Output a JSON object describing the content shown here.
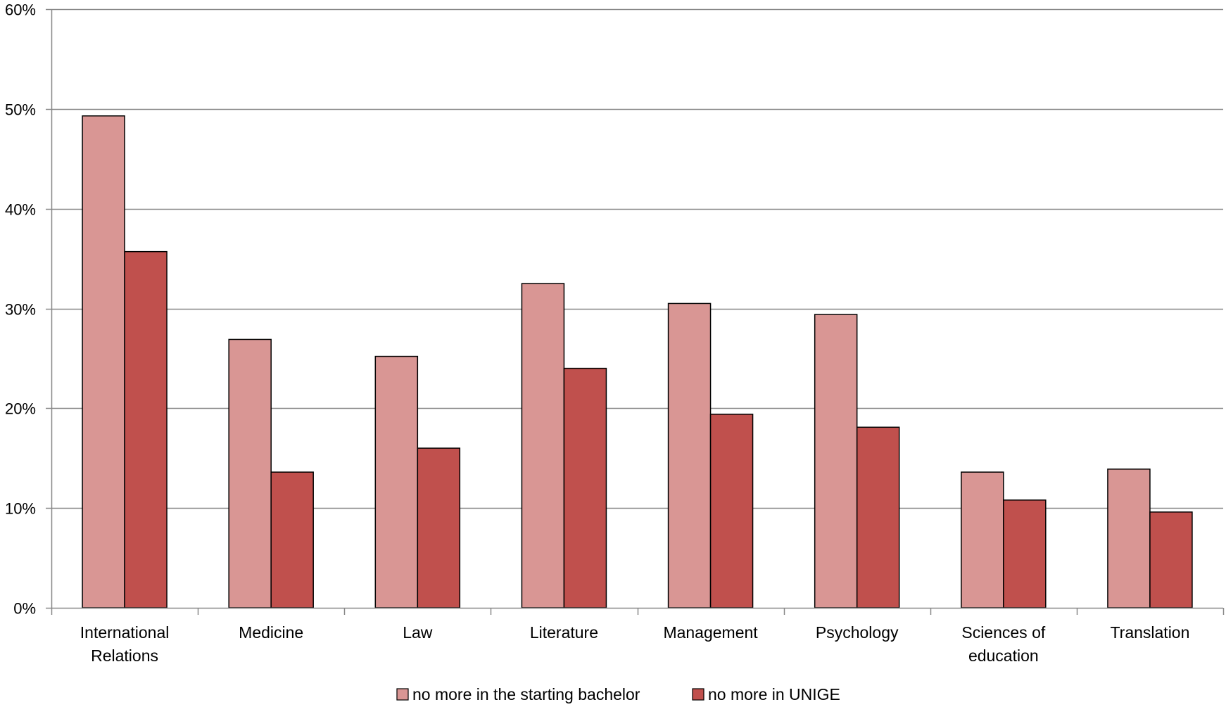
{
  "chart_data": {
    "type": "bar",
    "categories": [
      [
        "International",
        "Relations"
      ],
      [
        "Medicine"
      ],
      [
        "Law"
      ],
      [
        "Literature"
      ],
      [
        "Management"
      ],
      [
        "Psychology"
      ],
      [
        "Sciences of",
        "education"
      ],
      [
        "Translation"
      ]
    ],
    "series": [
      {
        "name": "no more in the starting bachelor",
        "color": "#d99694",
        "values": [
          49.3,
          26.9,
          25.2,
          32.5,
          30.5,
          29.4,
          13.6,
          13.9
        ]
      },
      {
        "name": "no more in UNIGE",
        "color": "#c0504d",
        "values": [
          35.7,
          13.6,
          16.0,
          24.0,
          19.4,
          18.1,
          10.8,
          9.6
        ]
      }
    ],
    "ylim": [
      0,
      60
    ],
    "yticks": [
      0,
      10,
      20,
      30,
      40,
      50,
      60
    ],
    "ytick_suffix": "%",
    "title": "",
    "xlabel": "",
    "ylabel": "",
    "grid": "horizontal",
    "legend_position": "bottom"
  }
}
